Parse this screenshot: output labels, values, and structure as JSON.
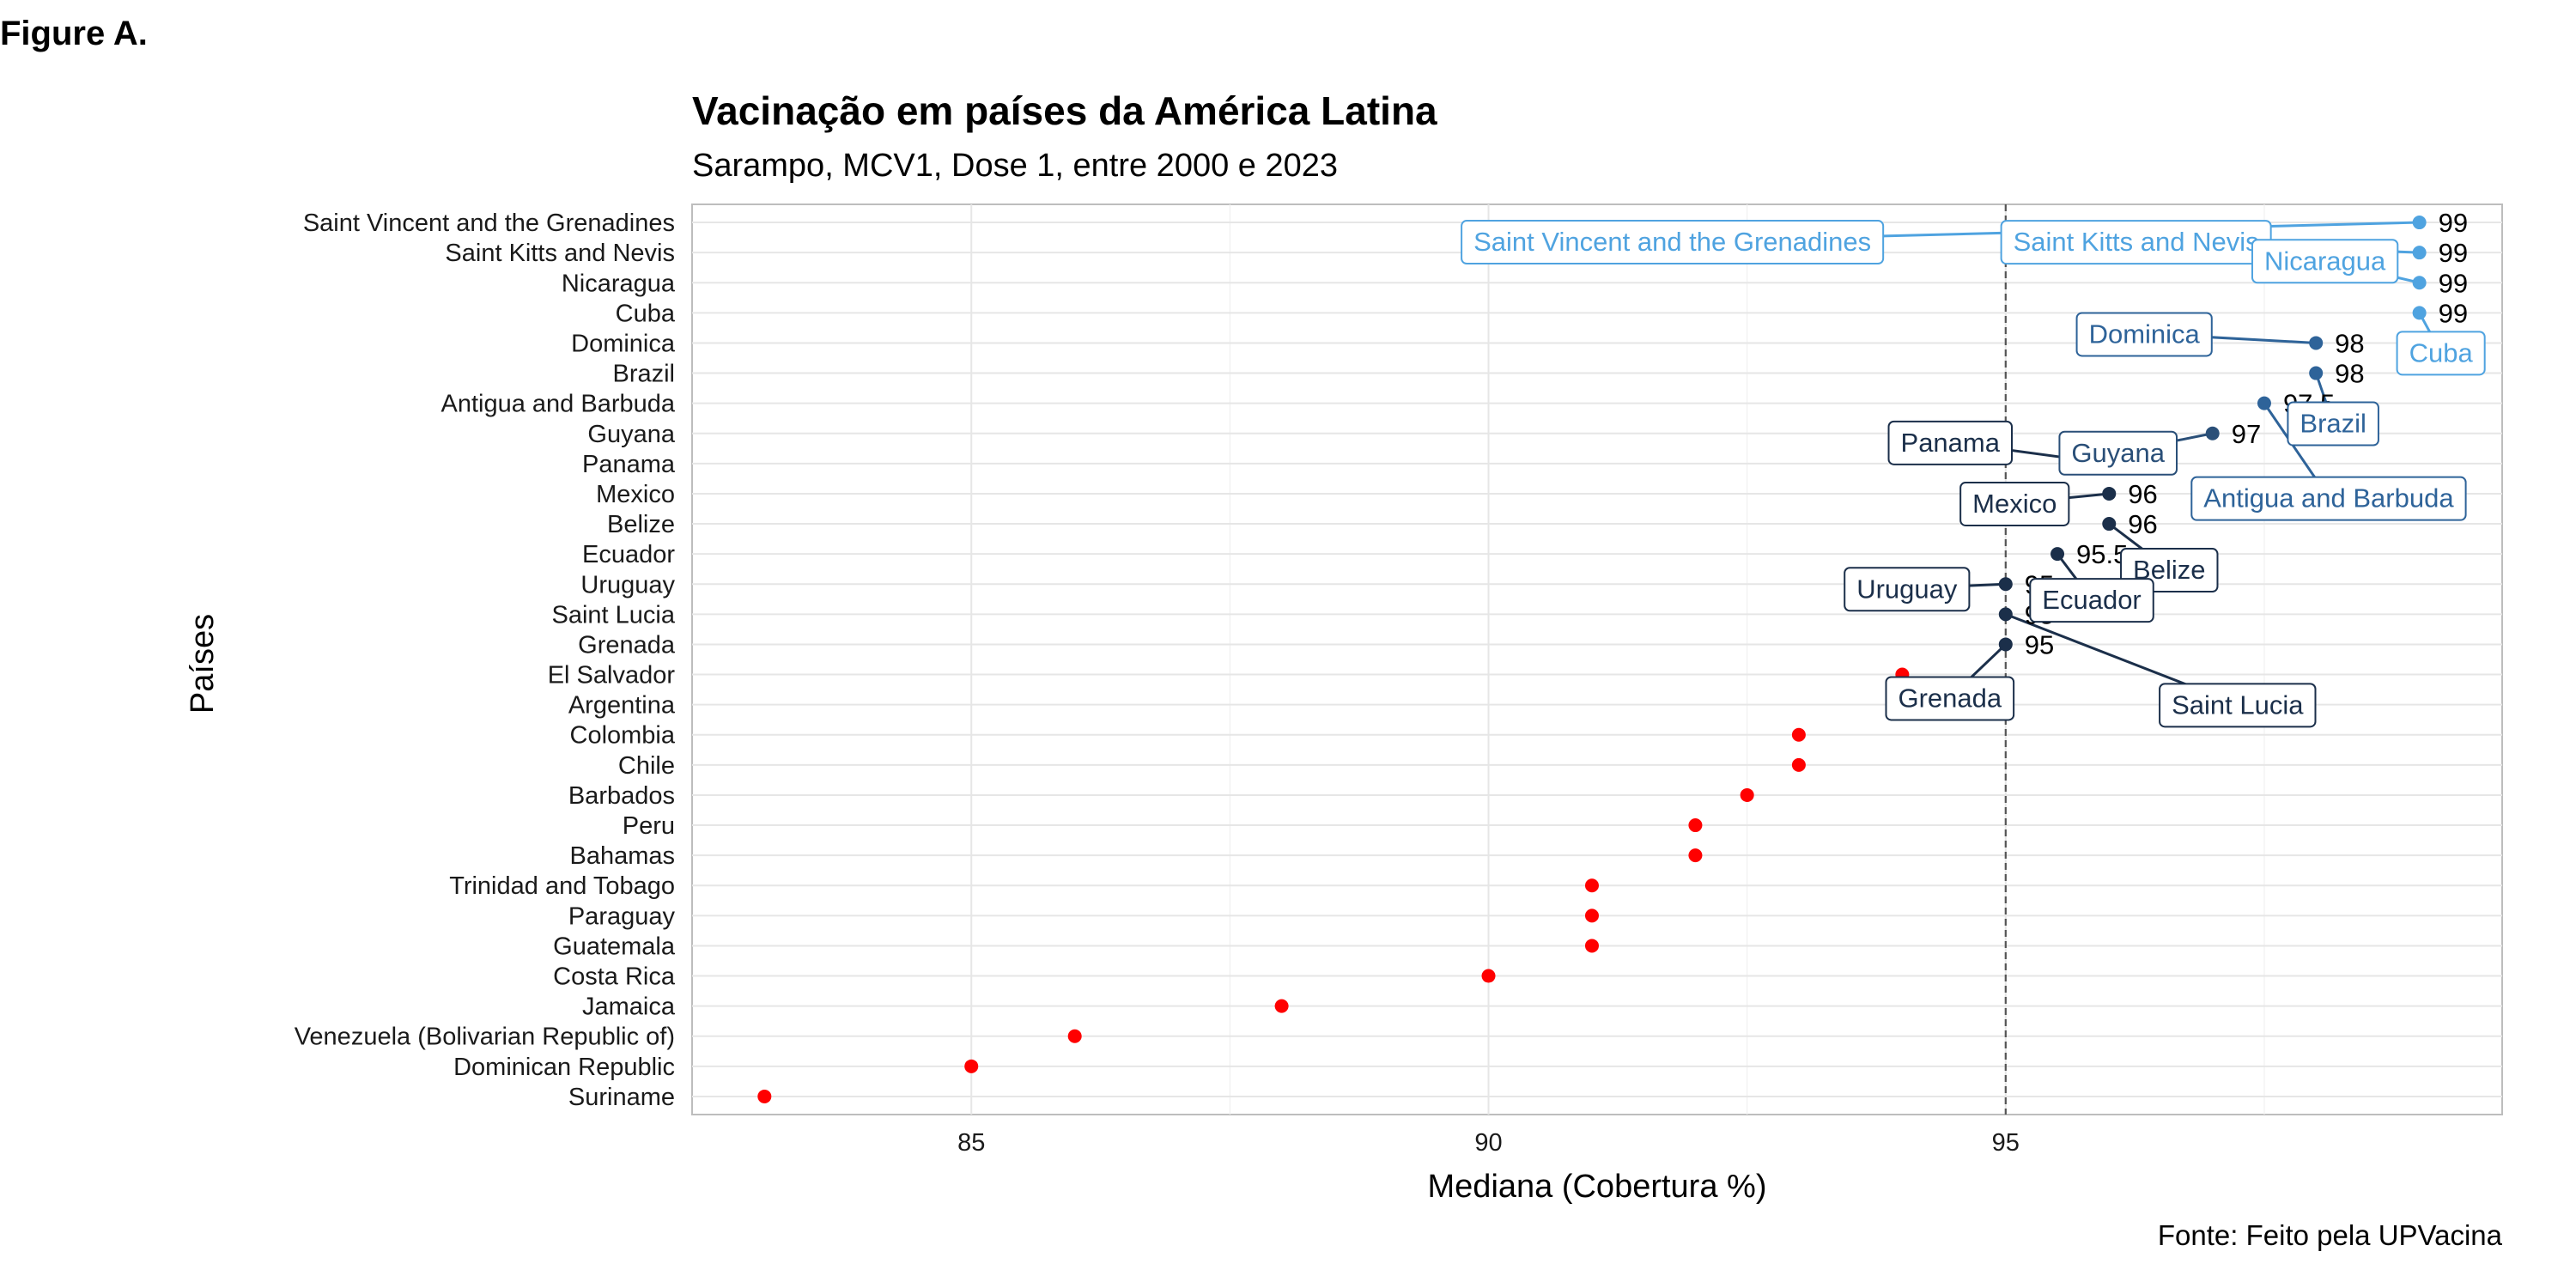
{
  "figure_label": "Figure A.",
  "chart_data": {
    "type": "scatter",
    "title": "Vacinação em países da América Latina",
    "subtitle": "Sarampo, MCV1, Dose 1, entre 2000 e 2023",
    "xlabel": "Mediana (Cobertura %)",
    "ylabel": "Países",
    "caption": "Fonte: Feito pela UPVacina",
    "xlim": [
      82.3,
      99.8
    ],
    "x_ticks": [
      85,
      90,
      95
    ],
    "x_minor_ticks": [
      87.5,
      92.5,
      97.5
    ],
    "reference_line": 95,
    "grid": true,
    "colors": {
      "below_95": "#ff0000",
      "label_dark": "#1b2f4a",
      "label_mid": "#2e6399",
      "label_light": "#4fa3e0",
      "grid": "#e6e6e6",
      "panel_border": "#bdbdbd"
    },
    "points": [
      {
        "country": "Saint Vincent and the Grenadines",
        "value": 99,
        "labeled": true
      },
      {
        "country": "Saint Kitts and Nevis",
        "value": 99,
        "labeled": true
      },
      {
        "country": "Nicaragua",
        "value": 99,
        "labeled": true
      },
      {
        "country": "Cuba",
        "value": 99,
        "labeled": true
      },
      {
        "country": "Dominica",
        "value": 98,
        "labeled": true
      },
      {
        "country": "Brazil",
        "value": 98,
        "labeled": true
      },
      {
        "country": "Antigua and Barbuda",
        "value": 97.5,
        "labeled": true
      },
      {
        "country": "Guyana",
        "value": 97,
        "labeled": true
      },
      {
        "country": "Panama",
        "value": 96,
        "labeled": true
      },
      {
        "country": "Mexico",
        "value": 96,
        "labeled": true
      },
      {
        "country": "Belize",
        "value": 96,
        "labeled": true
      },
      {
        "country": "Ecuador",
        "value": 95.5,
        "labeled": true
      },
      {
        "country": "Uruguay",
        "value": 95,
        "labeled": true
      },
      {
        "country": "Saint Lucia",
        "value": 95,
        "labeled": true
      },
      {
        "country": "Grenada",
        "value": 95,
        "labeled": true
      },
      {
        "country": "El Salvador",
        "value": 94,
        "labeled": false
      },
      {
        "country": "Argentina",
        "value": 94,
        "labeled": false
      },
      {
        "country": "Colombia",
        "value": 93,
        "labeled": false
      },
      {
        "country": "Chile",
        "value": 93,
        "labeled": false
      },
      {
        "country": "Barbados",
        "value": 92.5,
        "labeled": false
      },
      {
        "country": "Peru",
        "value": 92,
        "labeled": false
      },
      {
        "country": "Bahamas",
        "value": 92,
        "labeled": false
      },
      {
        "country": "Trinidad and Tobago",
        "value": 91,
        "labeled": false
      },
      {
        "country": "Paraguay",
        "value": 91,
        "labeled": false
      },
      {
        "country": "Guatemala",
        "value": 91,
        "labeled": false
      },
      {
        "country": "Costa Rica",
        "value": 90,
        "labeled": false
      },
      {
        "country": "Jamaica",
        "value": 88,
        "labeled": false
      },
      {
        "country": "Venezuela (Bolivarian Republic of)",
        "value": 86,
        "labeled": false
      },
      {
        "country": "Dominican Republic",
        "value": 85,
        "labeled": false
      },
      {
        "country": "Suriname",
        "value": 83,
        "labeled": false
      }
    ]
  }
}
